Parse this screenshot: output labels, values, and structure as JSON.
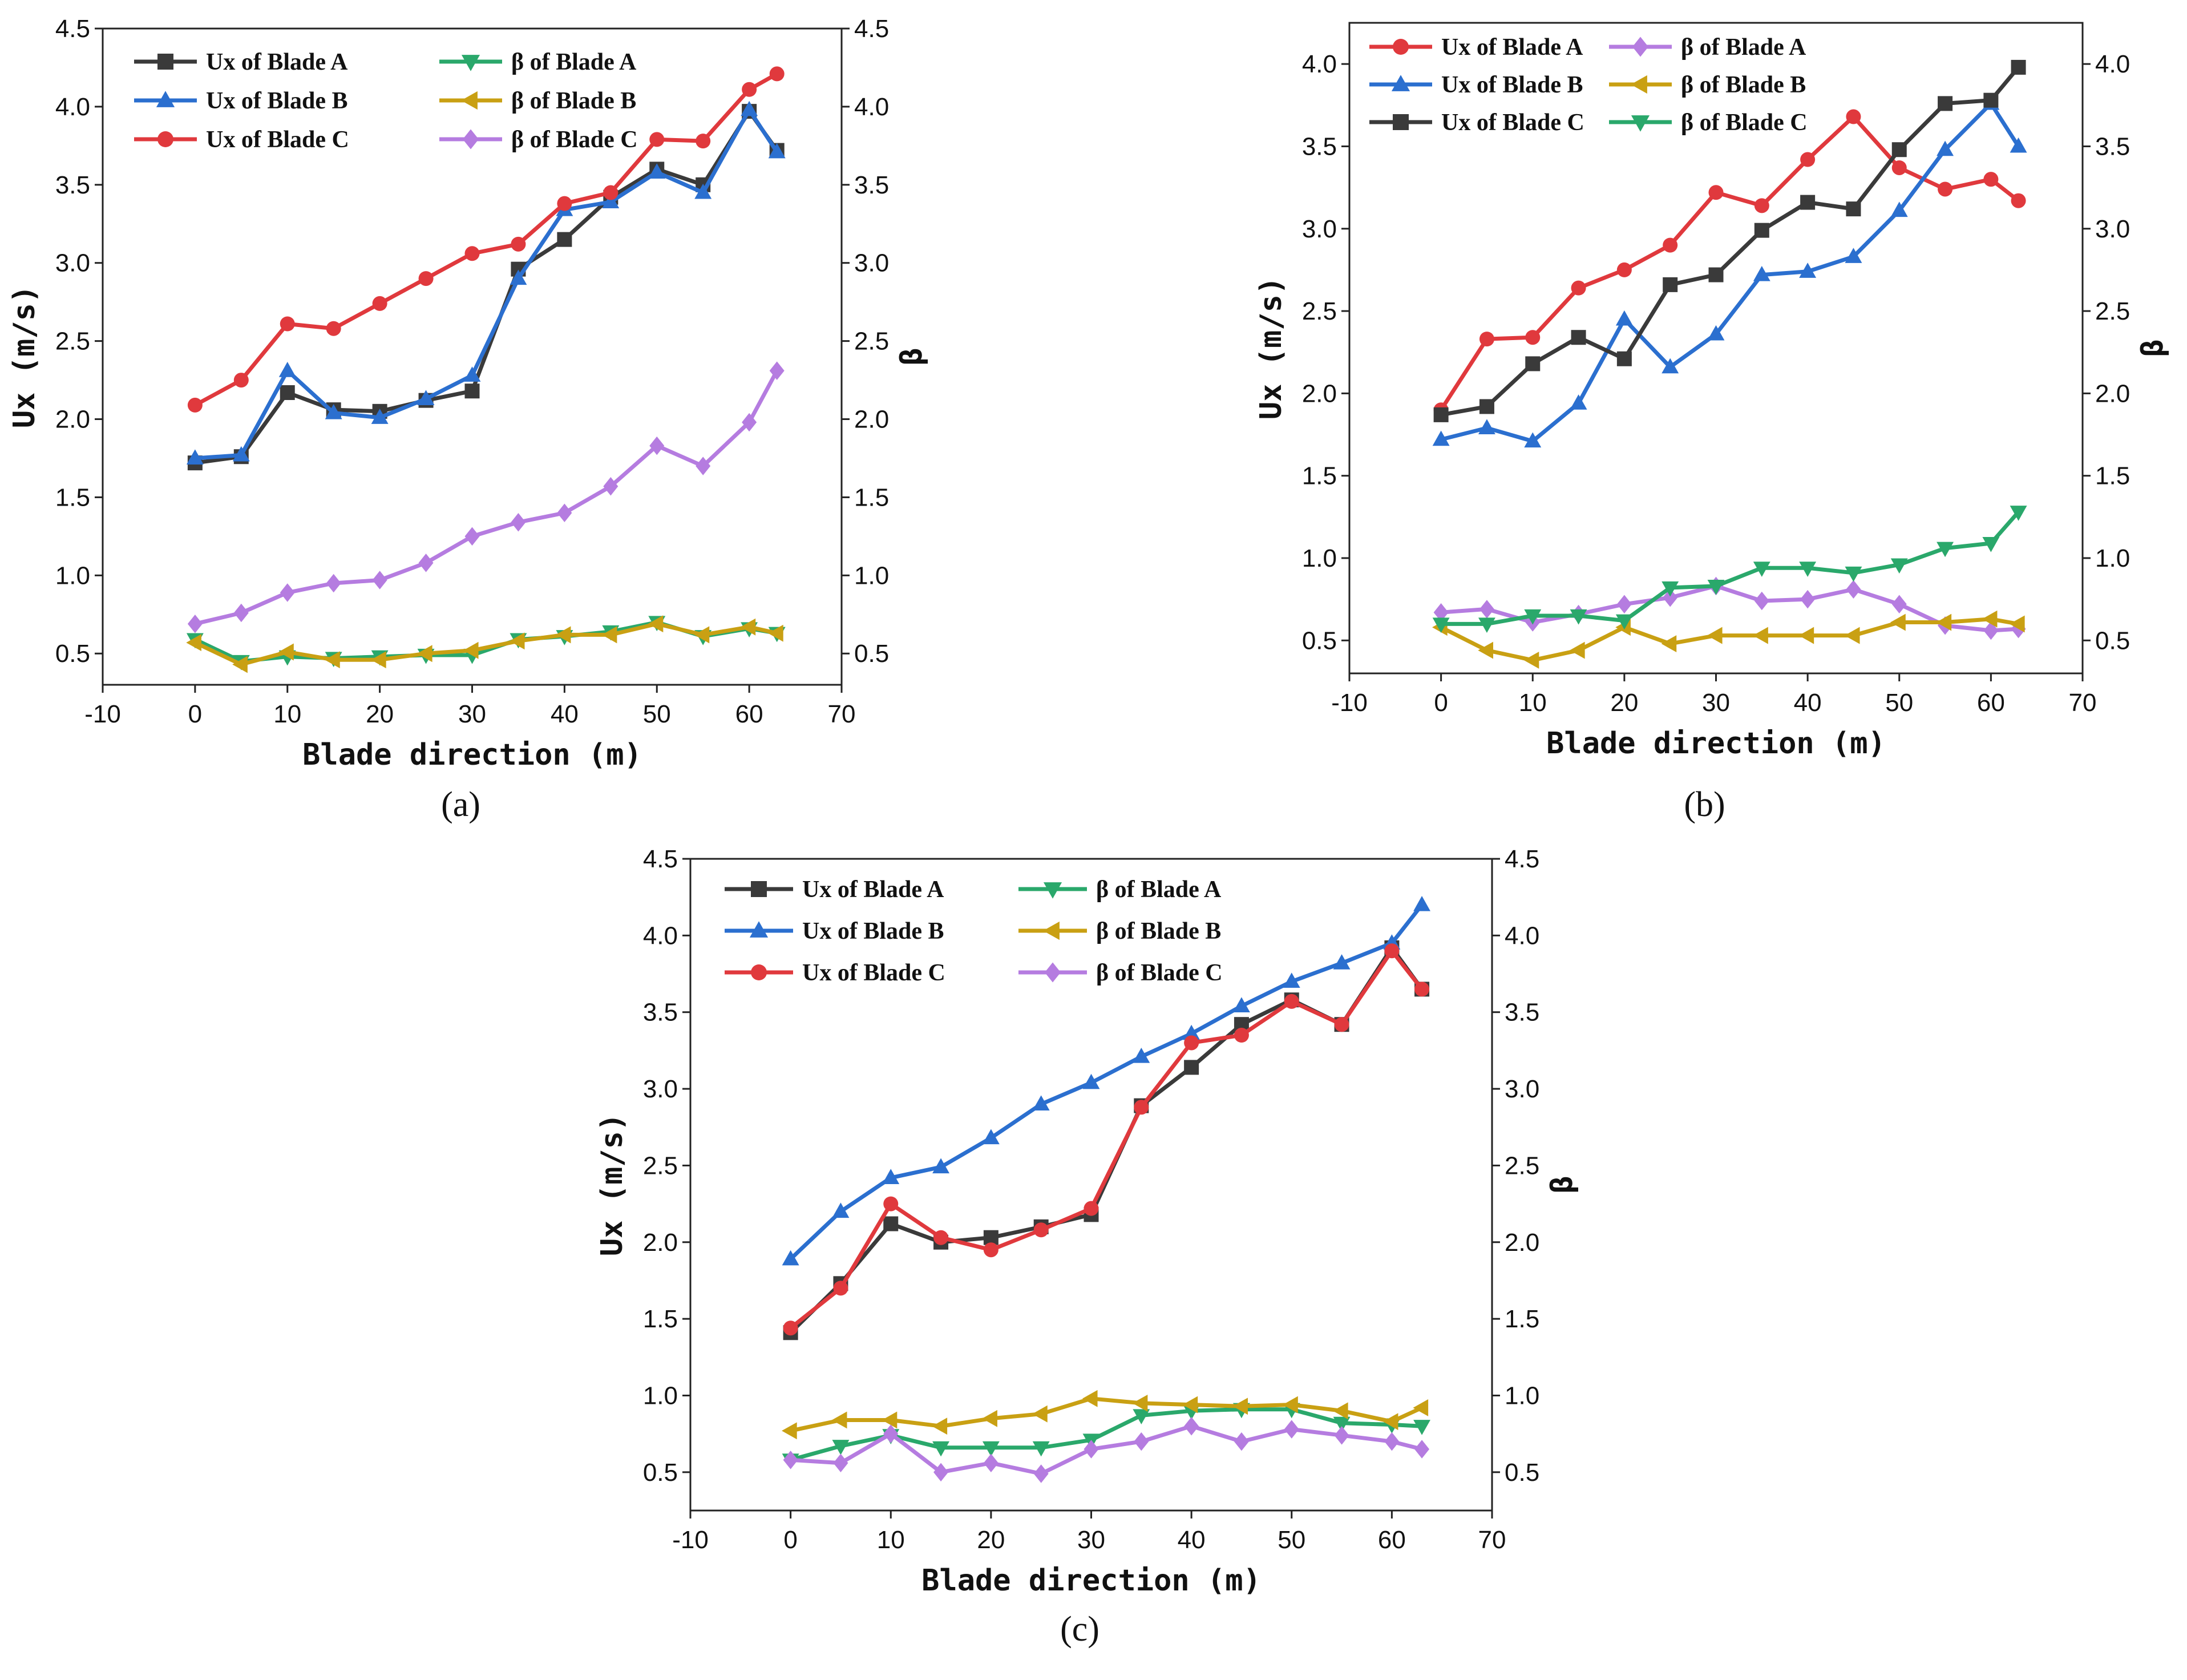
{
  "chart_data": [
    {
      "type": "line",
      "panel_label": "(a)",
      "xlabel": "Blade direction (m)",
      "ylabel": "Ux (m/s)",
      "y2label": "β",
      "xlim": [
        -10,
        70
      ],
      "ylim": [
        0.3,
        4.5
      ],
      "x_ticks": [
        "-10",
        "0",
        "10",
        "20",
        "30",
        "40",
        "50",
        "60",
        "70"
      ],
      "y_ticks": [
        "0.5",
        "1.0",
        "1.5",
        "2.0",
        "2.5",
        "3.0",
        "3.5",
        "4.0",
        "4.5"
      ],
      "y2_ticks": [
        "0.5",
        "1.0",
        "1.5",
        "2.0",
        "2.5",
        "3.0",
        "3.5",
        "4.0",
        "4.5"
      ],
      "x": [
        0,
        5,
        10,
        15,
        20,
        25,
        30,
        35,
        40,
        45,
        50,
        55,
        60,
        63
      ],
      "series": [
        {
          "name": "Ux of Blade A",
          "color": "#3a3a3a",
          "marker": "square",
          "values": [
            1.72,
            1.76,
            2.17,
            2.06,
            2.05,
            2.12,
            2.18,
            2.96,
            3.15,
            3.42,
            3.6,
            3.5,
            3.97,
            3.72
          ]
        },
        {
          "name": "Ux of Blade B",
          "color": "#2b6fcf",
          "marker": "triangle-up",
          "values": [
            1.75,
            1.77,
            2.31,
            2.04,
            2.01,
            2.13,
            2.28,
            2.9,
            3.34,
            3.39,
            3.58,
            3.45,
            3.98,
            3.71
          ]
        },
        {
          "name": "Ux of Blade C",
          "color": "#e0393d",
          "marker": "circle",
          "values": [
            2.09,
            2.25,
            2.61,
            2.58,
            2.74,
            2.9,
            3.06,
            3.12,
            3.38,
            3.45,
            3.79,
            3.78,
            4.11,
            4.21
          ]
        },
        {
          "name": "β  of  Blade A",
          "color": "#2aa86b",
          "marker": "triangle-down",
          "values": [
            0.59,
            0.45,
            0.48,
            0.47,
            0.48,
            0.49,
            0.49,
            0.59,
            0.61,
            0.64,
            0.7,
            0.61,
            0.66,
            0.63
          ]
        },
        {
          "name": "β  of  Blade B",
          "color": "#c9a013",
          "marker": "triangle-left",
          "values": [
            0.57,
            0.43,
            0.51,
            0.46,
            0.46,
            0.5,
            0.52,
            0.58,
            0.62,
            0.62,
            0.69,
            0.62,
            0.67,
            0.63
          ]
        },
        {
          "name": "β  of  Blade C",
          "color": "#b57ce0",
          "marker": "diamond",
          "values": [
            0.69,
            0.76,
            0.89,
            0.95,
            0.97,
            1.08,
            1.25,
            1.34,
            1.4,
            1.57,
            1.83,
            1.7,
            1.98,
            2.31
          ]
        }
      ]
    },
    {
      "type": "line",
      "panel_label": "(b)",
      "xlabel": "Blade direction (m)",
      "ylabel": "Ux (m/s)",
      "y2label": "β",
      "xlim": [
        -10,
        70
      ],
      "ylim": [
        0.3,
        4.25
      ],
      "x_ticks": [
        "-10",
        "0",
        "10",
        "20",
        "30",
        "40",
        "50",
        "60",
        "70"
      ],
      "y_ticks": [
        "0.5",
        "1.0",
        "1.5",
        "2.0",
        "2.5",
        "3.0",
        "3.5",
        "4.0"
      ],
      "y2_ticks": [
        "0.5",
        "1.0",
        "1.5",
        "2.0",
        "2.5",
        "3.0",
        "3.5",
        "4.0"
      ],
      "x": [
        0,
        5,
        10,
        15,
        20,
        25,
        30,
        35,
        40,
        45,
        50,
        55,
        60,
        63
      ],
      "series": [
        {
          "name": "Ux of Blade A",
          "color": "#e0393d",
          "marker": "circle",
          "values": [
            1.9,
            2.33,
            2.34,
            2.64,
            2.75,
            2.9,
            3.22,
            3.14,
            3.42,
            3.68,
            3.37,
            3.24,
            3.3,
            3.17
          ]
        },
        {
          "name": "Ux of Blade B",
          "color": "#2b6fcf",
          "marker": "triangle-up",
          "values": [
            1.72,
            1.79,
            1.71,
            1.94,
            2.45,
            2.16,
            2.36,
            2.72,
            2.74,
            2.83,
            3.11,
            3.48,
            3.76,
            3.5
          ]
        },
        {
          "name": "Ux of Blade C",
          "color": "#3a3a3a",
          "marker": "square",
          "values": [
            1.87,
            1.92,
            2.18,
            2.34,
            2.21,
            2.66,
            2.72,
            2.99,
            3.16,
            3.12,
            3.48,
            3.76,
            3.78,
            3.98
          ]
        },
        {
          "name": "β of Blade A",
          "color": "#b57ce0",
          "marker": "diamond",
          "values": [
            0.67,
            0.69,
            0.61,
            0.66,
            0.72,
            0.76,
            0.83,
            0.74,
            0.75,
            0.81,
            0.72,
            0.59,
            0.56,
            0.57
          ]
        },
        {
          "name": "β of Blade B",
          "color": "#c9a013",
          "marker": "triangle-left",
          "values": [
            0.58,
            0.44,
            0.38,
            0.44,
            0.58,
            0.48,
            0.53,
            0.53,
            0.53,
            0.53,
            0.61,
            0.61,
            0.63,
            0.6
          ]
        },
        {
          "name": "β of Blade C",
          "color": "#2aa86b",
          "marker": "triangle-down",
          "values": [
            0.6,
            0.6,
            0.65,
            0.65,
            0.62,
            0.82,
            0.83,
            0.94,
            0.94,
            0.91,
            0.96,
            1.06,
            1.09,
            1.28
          ]
        }
      ]
    },
    {
      "type": "line",
      "panel_label": "(c)",
      "xlabel": "Blade direction (m)",
      "ylabel": "Ux (m/s)",
      "y2label": "β",
      "xlim": [
        -10,
        70
      ],
      "ylim": [
        0.25,
        4.5
      ],
      "x_ticks": [
        "-10",
        "0",
        "10",
        "20",
        "30",
        "40",
        "50",
        "60",
        "70"
      ],
      "y_ticks": [
        "0.5",
        "1.0",
        "1.5",
        "2.0",
        "2.5",
        "3.0",
        "3.5",
        "4.0",
        "4.5"
      ],
      "y2_ticks": [
        "0.5",
        "1.0",
        "1.5",
        "2.0",
        "2.5",
        "3.0",
        "3.5",
        "4.0",
        "4.5"
      ],
      "x": [
        0,
        5,
        10,
        15,
        20,
        25,
        30,
        35,
        40,
        45,
        50,
        55,
        60,
        63
      ],
      "series": [
        {
          "name": "Ux of Blade A",
          "color": "#3a3a3a",
          "marker": "square",
          "values": [
            1.41,
            1.73,
            2.12,
            2.0,
            2.03,
            2.1,
            2.18,
            2.89,
            3.14,
            3.42,
            3.58,
            3.42,
            3.92,
            3.65
          ]
        },
        {
          "name": "Ux of Blade B",
          "color": "#2b6fcf",
          "marker": "triangle-up",
          "values": [
            1.89,
            2.2,
            2.42,
            2.49,
            2.68,
            2.9,
            3.04,
            3.21,
            3.36,
            3.54,
            3.7,
            3.82,
            3.95,
            4.2
          ]
        },
        {
          "name": "Ux of Blade C",
          "color": "#e0393d",
          "marker": "circle",
          "values": [
            1.44,
            1.7,
            2.25,
            2.03,
            1.95,
            2.08,
            2.22,
            2.88,
            3.3,
            3.35,
            3.57,
            3.42,
            3.9,
            3.65
          ]
        },
        {
          "name": "β of Blade A",
          "color": "#2aa86b",
          "marker": "triangle-down",
          "values": [
            0.58,
            0.67,
            0.74,
            0.66,
            0.66,
            0.66,
            0.71,
            0.87,
            0.9,
            0.91,
            0.91,
            0.82,
            0.81,
            0.8
          ]
        },
        {
          "name": "β of Blade B",
          "color": "#c9a013",
          "marker": "triangle-left",
          "values": [
            0.77,
            0.84,
            0.84,
            0.8,
            0.85,
            0.88,
            0.98,
            0.95,
            0.94,
            0.93,
            0.94,
            0.9,
            0.83,
            0.92
          ]
        },
        {
          "name": "β of Blade C",
          "color": "#b57ce0",
          "marker": "diamond",
          "values": [
            0.58,
            0.56,
            0.75,
            0.5,
            0.56,
            0.49,
            0.65,
            0.7,
            0.8,
            0.7,
            0.78,
            0.74,
            0.7,
            0.65
          ]
        }
      ]
    }
  ]
}
